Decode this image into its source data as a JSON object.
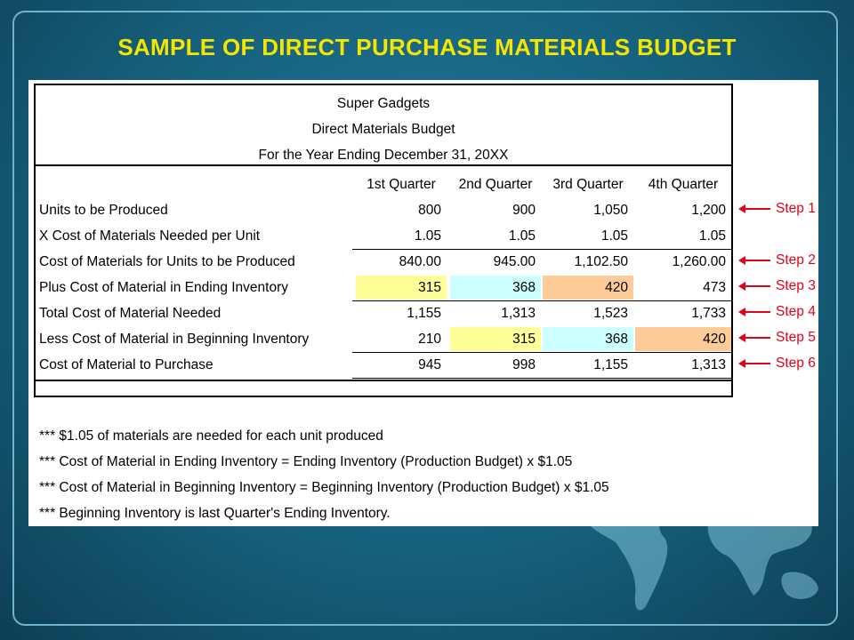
{
  "title": "SAMPLE OF DIRECT PURCHASE MATERIALS BUDGET",
  "colors": {
    "title": "#f5e600",
    "yellow": "#ffff99",
    "cyan": "#ccffff",
    "orange": "#ffcc99",
    "step": "#e0001a"
  },
  "budget": {
    "company": "Super Gadgets",
    "report": "Direct Materials Budget",
    "period": "For the Year Ending December 31, 20XX",
    "columns": [
      "1st Quarter",
      "2nd Quarter",
      "3rd Quarter",
      "4th Quarter"
    ],
    "rows": [
      {
        "label": "Units to be Produced",
        "values": [
          "800",
          "900",
          "1,050",
          "1,200"
        ],
        "highlights": [
          "",
          "",
          "",
          ""
        ],
        "step": "Step 1"
      },
      {
        "label": "X Cost of Materials Needed per Unit",
        "values": [
          "1.05",
          "1.05",
          "1.05",
          "1.05"
        ],
        "highlights": [
          "",
          "",
          "",
          ""
        ],
        "step": ""
      },
      {
        "label": "Cost of Materials for Units to be Produced",
        "values": [
          "840.00",
          "945.00",
          "1,102.50",
          "1,260.00"
        ],
        "highlights": [
          "",
          "",
          "",
          ""
        ],
        "step": "Step 2"
      },
      {
        "label": "Plus Cost of Material in Ending Inventory",
        "values": [
          "315",
          "368",
          "420",
          "473"
        ],
        "highlights": [
          "yellow",
          "cyan",
          "orange",
          ""
        ],
        "step": "Step 3"
      },
      {
        "label": "Total Cost of Material Needed",
        "values": [
          "1,155",
          "1,313",
          "1,523",
          "1,733"
        ],
        "highlights": [
          "",
          "",
          "",
          ""
        ],
        "step": "Step 4"
      },
      {
        "label": "Less Cost of Material in Beginning Inventory",
        "values": [
          "210",
          "315",
          "368",
          "420"
        ],
        "highlights": [
          "",
          "yellow",
          "cyan",
          "orange"
        ],
        "step": "Step 5"
      },
      {
        "label": "Cost of Material to Purchase",
        "values": [
          "945",
          "998",
          "1,155",
          "1,313"
        ],
        "highlights": [
          "",
          "",
          "",
          ""
        ],
        "step": "Step 6"
      }
    ]
  },
  "notes": [
    "*** $1.05 of materials are needed for each unit produced",
    "*** Cost of Material in Ending Inventory = Ending Inventory (Production Budget) x $1.05",
    "*** Cost of Material in Beginning Inventory = Beginning Inventory (Production Budget) x $1.05",
    "*** Beginning Inventory is last Quarter's Ending Inventory."
  ]
}
